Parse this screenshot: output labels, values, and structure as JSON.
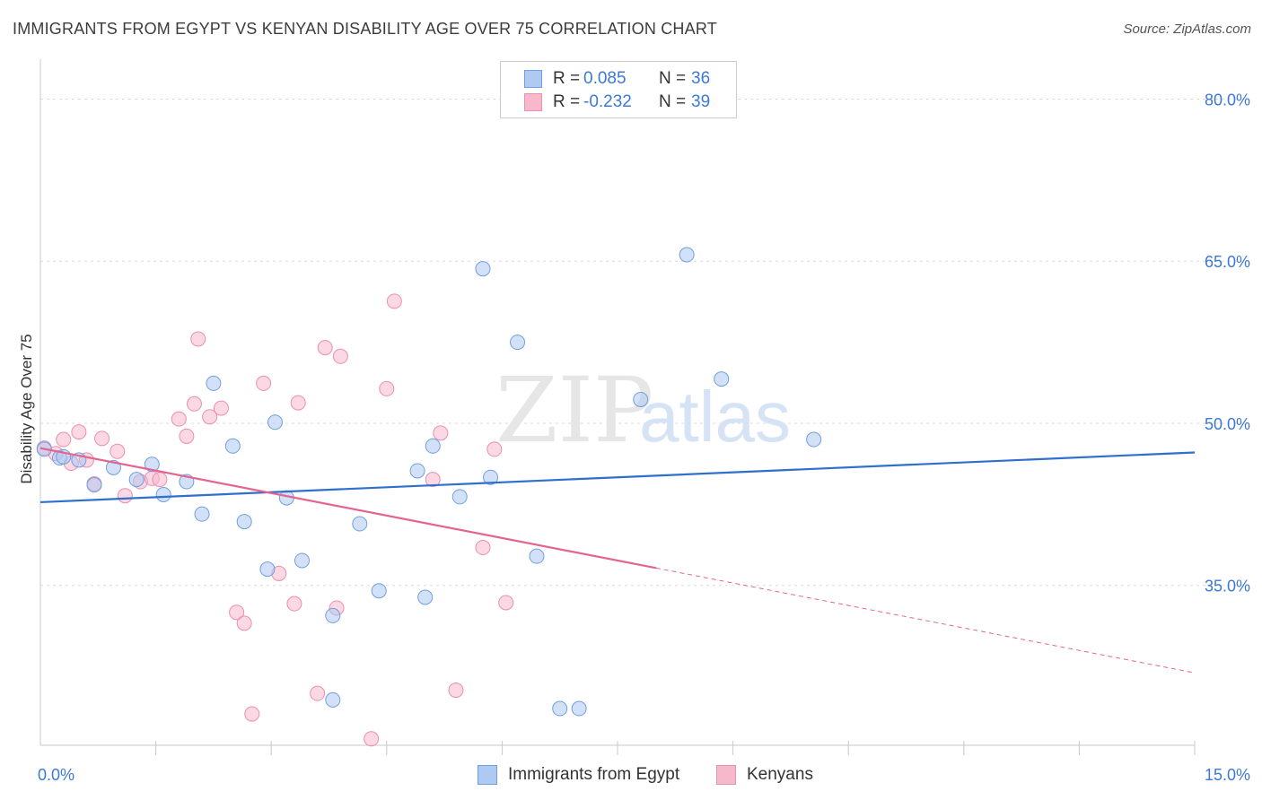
{
  "header": {
    "title": "IMMIGRANTS FROM EGYPT VS KENYAN DISABILITY AGE OVER 75 CORRELATION CHART",
    "source": "Source: ZipAtlas.com"
  },
  "watermark": {
    "zip": "ZIP",
    "atlas": "atlas"
  },
  "legend": {
    "rows": [
      {
        "r_label": "R =",
        "r_value": "0.085",
        "n_label": "N =",
        "n_value": "36",
        "color": "#aec9f2"
      },
      {
        "r_label": "R =",
        "r_value": "-0.232",
        "n_label": "N =",
        "n_value": "39",
        "color": "#f7b8cc"
      }
    ]
  },
  "bottom_legend": [
    {
      "label": "Immigrants from Egypt",
      "color": "#aec9f2"
    },
    {
      "label": "Kenyans",
      "color": "#f7b8cc"
    }
  ],
  "colors": {
    "egypt_fill": "#aec9f2",
    "egypt_stroke": "#6f9fe0",
    "egypt_line": "#2f6fce",
    "kenya_fill": "#f7b8cc",
    "kenya_stroke": "#ea8fb0",
    "kenya_line": "#e4648f",
    "tick_label": "#3c78d8"
  },
  "chart_data": {
    "type": "scatter",
    "title": "IMMIGRANTS FROM EGYPT VS KENYAN DISABILITY AGE OVER 75 CORRELATION CHART",
    "xlabel": "",
    "ylabel": "Disability Age Over 75",
    "xlim": [
      0,
      15
    ],
    "ylim": [
      20.2,
      82.7
    ],
    "x_tick_labels": [
      {
        "value": 0,
        "label": "0.0%"
      },
      {
        "value": 15,
        "label": "15.0%"
      }
    ],
    "y_tick_labels": [
      {
        "value": 35,
        "label": "35.0%"
      },
      {
        "value": 50,
        "label": "50.0%"
      },
      {
        "value": 65,
        "label": "65.0%"
      },
      {
        "value": 80,
        "label": "80.0%"
      }
    ],
    "grid": true,
    "legend_position": "top-center",
    "series": [
      {
        "name": "Immigrants from Egypt",
        "points": [
          [
            0.05,
            47.6
          ],
          [
            0.25,
            46.8
          ],
          [
            0.5,
            46.6
          ],
          [
            0.7,
            44.3
          ],
          [
            0.95,
            45.9
          ],
          [
            1.25,
            44.8
          ],
          [
            1.45,
            46.2
          ],
          [
            1.6,
            43.4
          ],
          [
            1.9,
            44.6
          ],
          [
            2.1,
            41.6
          ],
          [
            2.25,
            53.7
          ],
          [
            2.5,
            47.9
          ],
          [
            2.65,
            40.9
          ],
          [
            2.95,
            36.5
          ],
          [
            3.05,
            50.1
          ],
          [
            3.2,
            43.1
          ],
          [
            3.4,
            37.3
          ],
          [
            3.8,
            32.2
          ],
          [
            3.8,
            24.4
          ],
          [
            4.15,
            40.7
          ],
          [
            4.4,
            34.5
          ],
          [
            4.9,
            45.6
          ],
          [
            5.0,
            33.9
          ],
          [
            5.1,
            47.9
          ],
          [
            5.45,
            43.2
          ],
          [
            5.75,
            64.3
          ],
          [
            5.85,
            45.0
          ],
          [
            6.2,
            57.5
          ],
          [
            6.45,
            37.7
          ],
          [
            6.75,
            23.6
          ],
          [
            7.0,
            23.6
          ],
          [
            7.8,
            52.2
          ],
          [
            8.4,
            65.6
          ],
          [
            8.85,
            54.1
          ],
          [
            10.05,
            48.5
          ],
          [
            0.3,
            46.9
          ]
        ],
        "trend": {
          "x": [
            0,
            15
          ],
          "y": [
            42.7,
            47.3
          ]
        }
      },
      {
        "name": "Kenyans",
        "points": [
          [
            0.05,
            47.7
          ],
          [
            0.2,
            47.2
          ],
          [
            0.3,
            48.5
          ],
          [
            0.4,
            46.3
          ],
          [
            0.5,
            49.2
          ],
          [
            0.6,
            46.6
          ],
          [
            0.7,
            44.4
          ],
          [
            0.8,
            48.6
          ],
          [
            1.0,
            47.4
          ],
          [
            1.1,
            43.3
          ],
          [
            1.3,
            44.6
          ],
          [
            1.45,
            44.9
          ],
          [
            1.55,
            44.8
          ],
          [
            1.8,
            50.4
          ],
          [
            1.9,
            48.8
          ],
          [
            2.0,
            51.8
          ],
          [
            2.05,
            57.8
          ],
          [
            2.2,
            50.6
          ],
          [
            2.35,
            51.4
          ],
          [
            2.55,
            32.5
          ],
          [
            2.65,
            31.5
          ],
          [
            2.75,
            23.1
          ],
          [
            2.9,
            53.7
          ],
          [
            3.1,
            36.1
          ],
          [
            3.3,
            33.3
          ],
          [
            3.35,
            51.9
          ],
          [
            3.6,
            25.0
          ],
          [
            3.7,
            57.0
          ],
          [
            3.85,
            32.9
          ],
          [
            3.9,
            56.2
          ],
          [
            4.3,
            20.8
          ],
          [
            4.5,
            53.2
          ],
          [
            4.6,
            61.3
          ],
          [
            5.1,
            44.8
          ],
          [
            5.2,
            49.1
          ],
          [
            5.4,
            25.3
          ],
          [
            5.75,
            38.5
          ],
          [
            5.9,
            47.6
          ],
          [
            6.05,
            33.4
          ]
        ],
        "trend": {
          "x": [
            0,
            15
          ],
          "y": [
            47.7,
            26.9
          ],
          "solid_until_x": 8.0
        }
      }
    ]
  }
}
